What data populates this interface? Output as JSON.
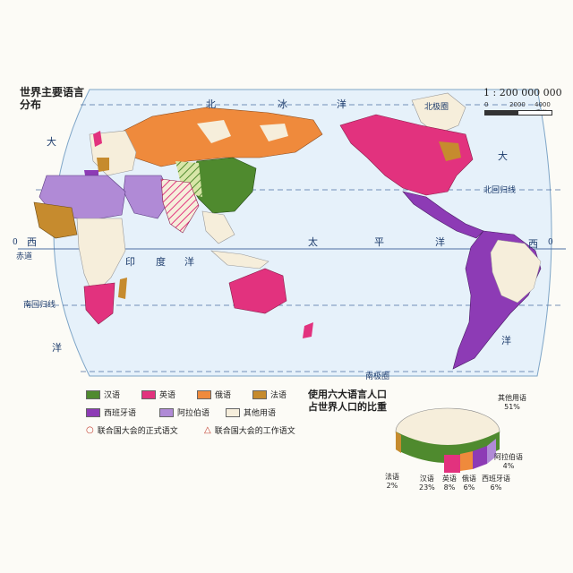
{
  "map_title": [
    "世界主要语言",
    "分布"
  ],
  "scale": {
    "ratio": "1 : 200 000 000",
    "ticks": [
      "0",
      "2000",
      "4000千米"
    ]
  },
  "labels": {
    "north_ice_ocean_1": "北",
    "north_ice_ocean_2": "冰",
    "north_ice_ocean_3": "洋",
    "arctic_circle": "北极圈",
    "tropic_cancer": "北回归线",
    "equator": "赤道",
    "tropic_capricorn": "南回归线",
    "antarctic_circle": "南极圈",
    "west_ocean_l1": "大",
    "west_ocean_l2": "西",
    "west_ocean_l3": "洋",
    "east_atl_1": "大",
    "east_atl_2": "西",
    "east_atl_3": "洋",
    "indian_1": "印",
    "indian_2": "度",
    "indian_3": "洋",
    "pacific_1": "太",
    "pacific_2": "平",
    "pacific_3": "洋",
    "zero_left": "0",
    "zero_right": "0"
  },
  "legend": {
    "items": [
      {
        "label": "汉语",
        "color": "#4f8a2e"
      },
      {
        "label": "英语",
        "color": "#e2327e"
      },
      {
        "label": "俄语",
        "color": "#ef8a3c"
      },
      {
        "label": "法语",
        "color": "#c68b2e"
      },
      {
        "label": "西班牙语",
        "color": "#8d3bb5"
      },
      {
        "label": "阿拉伯语",
        "color": "#b08ad6"
      },
      {
        "label": "其他用语",
        "color": "#f6eedb"
      }
    ],
    "official_mark": "联合国大会的正式语文",
    "working_mark": "联合国大会的工作语文"
  },
  "stats": {
    "title": [
      "使用六大语言人口",
      "占世界人口的比重"
    ],
    "labels": [
      {
        "name": "其他用语",
        "value": "51%"
      },
      {
        "name": "阿拉伯语",
        "value": "4%"
      },
      {
        "name": "法语",
        "value": "2%"
      },
      {
        "name": "汉语",
        "value": "23%"
      },
      {
        "name": "英语",
        "value": "8%"
      },
      {
        "name": "俄语",
        "value": "6%"
      },
      {
        "name": "西班牙语",
        "value": "6%"
      }
    ]
  }
}
